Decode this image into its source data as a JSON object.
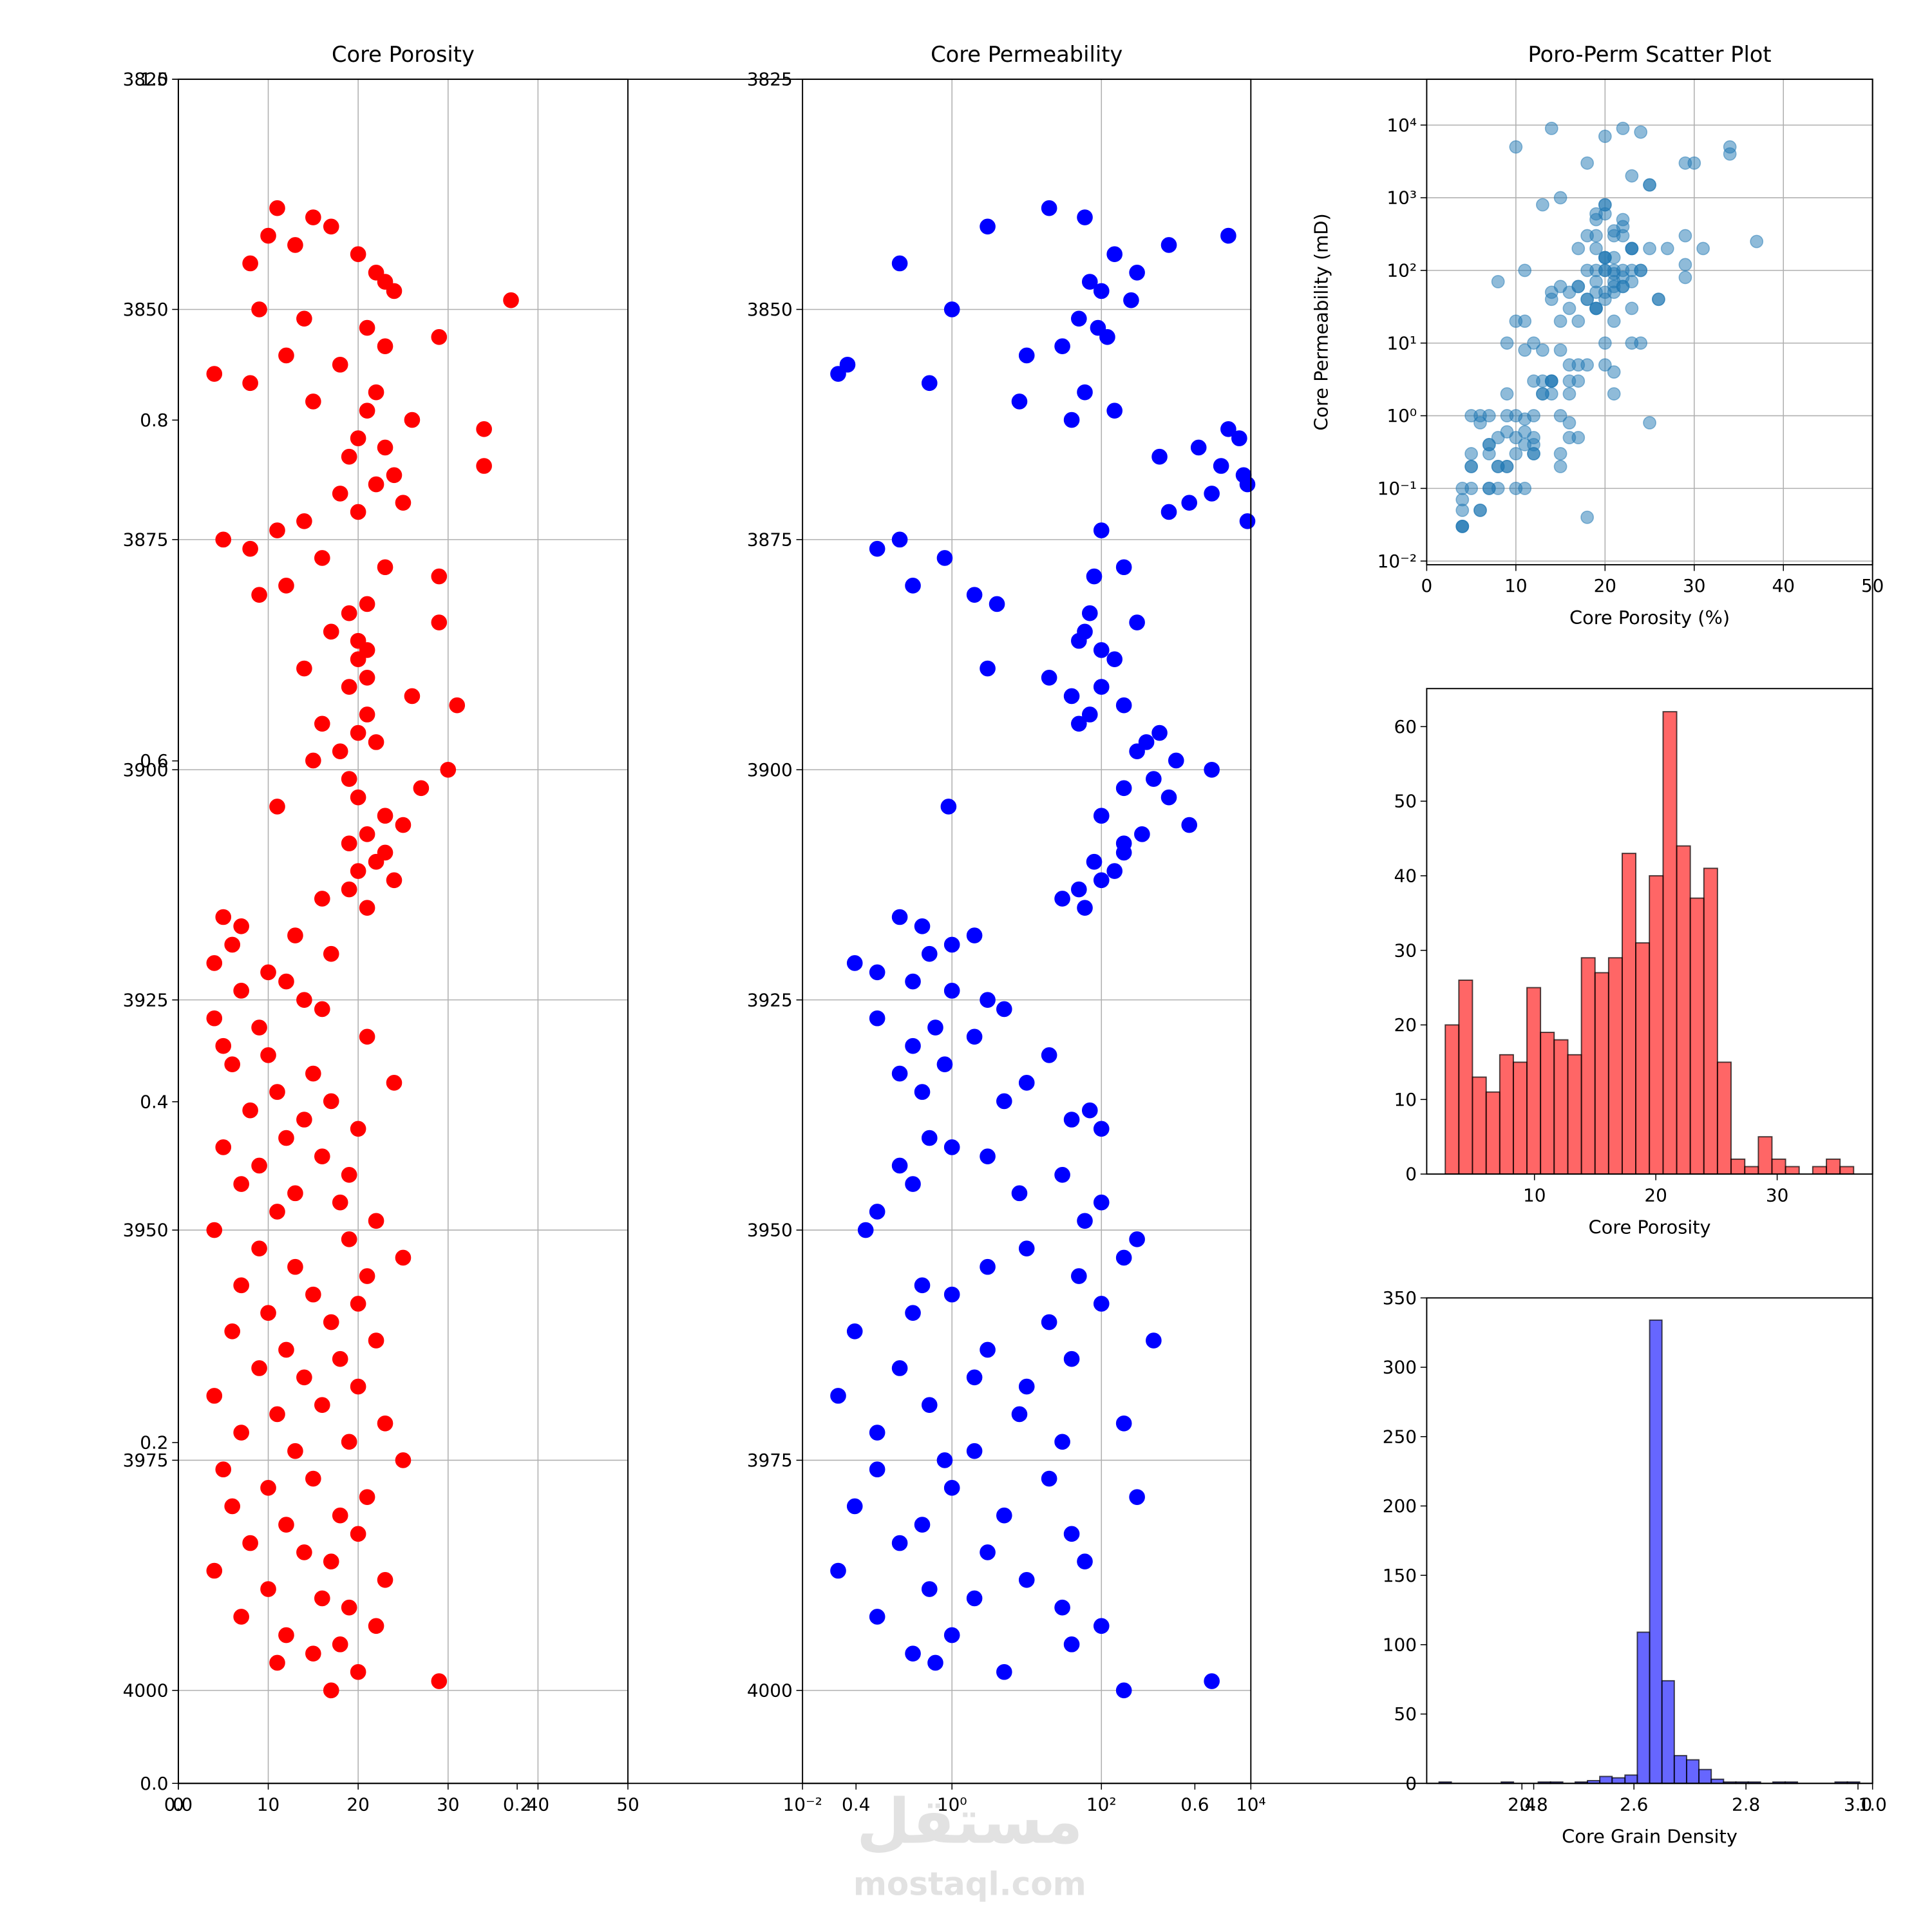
{
  "chart_data": [
    {
      "type": "scatter",
      "title": "Core Porosity",
      "color": "red",
      "grid": true,
      "x": [
        11,
        15,
        17,
        10,
        13,
        20,
        8,
        22,
        23,
        24,
        37,
        9,
        14,
        21,
        29,
        23,
        12,
        18,
        4,
        8,
        22,
        15,
        21,
        26,
        34,
        20,
        23,
        19,
        34,
        24,
        22,
        18,
        25,
        20,
        14,
        11,
        5,
        8,
        16,
        23,
        29,
        12,
        9,
        21,
        19,
        29,
        17,
        20,
        21,
        20,
        14,
        21,
        19,
        26,
        31,
        21,
        16,
        20,
        22,
        18,
        15,
        30,
        19,
        27,
        20,
        11,
        23,
        25,
        21,
        19,
        23,
        22,
        20,
        24,
        19,
        16,
        21,
        5,
        7,
        13,
        6,
        17,
        4,
        10,
        12,
        7,
        14,
        16,
        4,
        9,
        21,
        5,
        10,
        6,
        15,
        24,
        11,
        17,
        8,
        14,
        20,
        12,
        5,
        16,
        9,
        19,
        7,
        13,
        18,
        11,
        22,
        4,
        19,
        9,
        25,
        13,
        21,
        7,
        15,
        20,
        10,
        17,
        6,
        22,
        12,
        18,
        9,
        14,
        20,
        4,
        16,
        11,
        23,
        7,
        19,
        13,
        25,
        5,
        15,
        10,
        21,
        6,
        18,
        12,
        20,
        8,
        14,
        17,
        4,
        23,
        10,
        16,
        19,
        7,
        22,
        12,
        18,
        15,
        11,
        20,
        29,
        17
      ],
      "y": [
        3839,
        3840,
        3841,
        3842,
        3843,
        3844,
        3845,
        3846,
        3847,
        3848,
        3849,
        3850,
        3851,
        3852,
        3853,
        3854,
        3855,
        3856,
        3857,
        3858,
        3859,
        3860,
        3861,
        3862,
        3863,
        3864,
        3865,
        3866,
        3867,
        3868,
        3869,
        3870,
        3871,
        3872,
        3873,
        3874,
        3875,
        3876,
        3877,
        3878,
        3879,
        3880,
        3881,
        3882,
        3883,
        3884,
        3885,
        3886,
        3887,
        3888,
        3889,
        3890,
        3891,
        3892,
        3893,
        3894,
        3895,
        3896,
        3897,
        3898,
        3899,
        3900,
        3901,
        3902,
        3903,
        3904,
        3905,
        3906,
        3907,
        3908,
        3909,
        3910,
        3911,
        3912,
        3913,
        3914,
        3915,
        3916,
        3917,
        3918,
        3919,
        3920,
        3921,
        3922,
        3923,
        3924,
        3925,
        3926,
        3927,
        3928,
        3929,
        3930,
        3931,
        3932,
        3933,
        3934,
        3935,
        3936,
        3937,
        3938,
        3939,
        3940,
        3941,
        3942,
        3943,
        3944,
        3945,
        3946,
        3947,
        3948,
        3949,
        3950,
        3951,
        3952,
        3953,
        3954,
        3955,
        3956,
        3957,
        3958,
        3959,
        3960,
        3961,
        3962,
        3963,
        3964,
        3965,
        3966,
        3967,
        3968,
        3969,
        3970,
        3971,
        3972,
        3973,
        3974,
        3975,
        3976,
        3977,
        3978,
        3979,
        3980,
        3981,
        3982,
        3983,
        3984,
        3985,
        3986,
        3987,
        3988,
        3989,
        3990,
        3991,
        3992,
        3993,
        3994,
        3995,
        3996,
        3997,
        3998,
        3999,
        4000
      ],
      "xlim": [
        0,
        50
      ],
      "xticks": [
        0,
        10,
        20,
        30,
        40,
        50
      ],
      "ylim": [
        4010.1,
        3825
      ],
      "yticks": [
        3825,
        3850,
        3875,
        3900,
        3925,
        3950,
        3975,
        4000
      ]
    },
    {
      "type": "scatter",
      "title": "Core Permeability",
      "color": "blue",
      "grid": true,
      "xscale": "log",
      "x": [
        20,
        60,
        3,
        5000,
        800,
        150,
        0.2,
        300,
        70,
        100,
        250,
        1,
        50,
        90,
        120,
        30,
        10,
        0.04,
        0.03,
        0.5,
        60,
        8,
        150,
        40,
        5000,
        7000,
        2000,
        600,
        4000,
        8000,
        9000,
        3000,
        1500,
        800,
        9000,
        100,
        0.2,
        0.1,
        0.8,
        200,
        80,
        0.3,
        2,
        4,
        70,
        300,
        60,
        50,
        100,
        150,
        3,
        20,
        100,
        40,
        200,
        70,
        50,
        600,
        400,
        300,
        1000,
        3000,
        500,
        200,
        800,
        0.9,
        100,
        1500,
        350,
        200,
        200,
        80,
        150,
        100,
        50,
        30,
        60,
        0.2,
        0.4,
        2,
        1,
        0.5,
        0.05,
        0.1,
        0.3,
        1,
        3,
        5,
        0.1,
        0.6,
        2,
        0.3,
        20,
        0.8,
        0.2,
        10,
        0.4,
        5,
        70,
        40,
        100,
        0.5,
        1,
        3,
        0.2,
        30,
        0.3,
        8,
        100,
        0.1,
        60,
        0.07,
        300,
        10,
        200,
        3,
        50,
        0.4,
        1,
        100,
        0.3,
        20,
        0.05,
        500,
        3,
        40,
        0.2,
        2,
        10,
        0.03,
        0.5,
        8,
        200,
        0.1,
        30,
        2,
        0.8,
        0.1,
        20,
        1,
        300,
        0.05,
        5,
        0.4,
        40,
        0.2,
        3,
        60,
        0.03,
        10,
        0.5,
        2,
        30,
        0.1,
        100,
        1,
        40,
        0.3,
        0.6,
        5,
        3000,
        200
      ],
      "y": [
        3839,
        3840,
        3841,
        3842,
        3843,
        3844,
        3845,
        3846,
        3847,
        3848,
        3849,
        3850,
        3851,
        3852,
        3853,
        3854,
        3855,
        3856,
        3857,
        3858,
        3859,
        3860,
        3861,
        3862,
        3863,
        3864,
        3865,
        3866,
        3867,
        3868,
        3869,
        3870,
        3871,
        3872,
        3873,
        3874,
        3875,
        3876,
        3877,
        3878,
        3879,
        3880,
        3881,
        3882,
        3883,
        3884,
        3885,
        3886,
        3887,
        3888,
        3889,
        3890,
        3891,
        3892,
        3893,
        3894,
        3895,
        3896,
        3897,
        3898,
        3899,
        3900,
        3901,
        3902,
        3903,
        3904,
        3905,
        3906,
        3907,
        3908,
        3909,
        3910,
        3911,
        3912,
        3913,
        3914,
        3915,
        3916,
        3917,
        3918,
        3919,
        3920,
        3921,
        3922,
        3923,
        3924,
        3925,
        3926,
        3927,
        3928,
        3929,
        3930,
        3931,
        3932,
        3933,
        3934,
        3935,
        3936,
        3937,
        3938,
        3939,
        3940,
        3941,
        3942,
        3943,
        3944,
        3945,
        3946,
        3947,
        3948,
        3949,
        3950,
        3951,
        3952,
        3953,
        3954,
        3955,
        3956,
        3957,
        3958,
        3959,
        3960,
        3961,
        3962,
        3963,
        3964,
        3965,
        3966,
        3967,
        3968,
        3969,
        3970,
        3971,
        3972,
        3973,
        3974,
        3975,
        3976,
        3977,
        3978,
        3979,
        3980,
        3981,
        3982,
        3983,
        3984,
        3985,
        3986,
        3987,
        3988,
        3989,
        3990,
        3991,
        3992,
        3993,
        3994,
        3995,
        3996,
        3997,
        3998,
        3999,
        4000
      ],
      "xlim": [
        0.01,
        10000
      ],
      "xticks": [
        {
          "value": 0.01,
          "label": "10⁻²"
        },
        {
          "value": 1,
          "label": "10⁰"
        },
        {
          "value": 100,
          "label": "10²"
        },
        {
          "value": 10000,
          "label": "10⁴"
        }
      ],
      "ylim": [
        4010.1,
        3825
      ],
      "yticks": [
        3825,
        3850,
        3875,
        3900,
        3925,
        3950,
        3975,
        4000
      ]
    },
    {
      "type": "scatter",
      "title": "Poro-Perm Scatter Plot",
      "xlabel": "Core Porosity (%)",
      "ylabel": "Core Permeability (mD)",
      "color": "#1f77b4",
      "alpha": 0.5,
      "grid": true,
      "yscale": "log",
      "x": [
        11,
        15,
        17,
        10,
        13,
        20,
        8,
        22,
        23,
        24,
        37,
        9,
        14,
        21,
        29,
        23,
        12,
        18,
        4,
        8,
        22,
        15,
        21,
        26,
        34,
        20,
        23,
        19,
        34,
        24,
        22,
        18,
        25,
        20,
        14,
        11,
        5,
        8,
        16,
        23,
        29,
        12,
        9,
        21,
        19,
        29,
        17,
        20,
        21,
        20,
        14,
        21,
        19,
        26,
        31,
        21,
        16,
        20,
        22,
        18,
        15,
        30,
        19,
        27,
        20,
        11,
        23,
        25,
        21,
        19,
        23,
        22,
        20,
        24,
        19,
        16,
        21,
        5,
        7,
        13,
        6,
        17,
        4,
        10,
        12,
        7,
        14,
        16,
        4,
        9,
        21,
        5,
        10,
        6,
        15,
        24,
        11,
        17,
        8,
        14,
        20,
        12,
        5,
        16,
        9,
        19,
        7,
        13,
        18,
        11,
        22,
        4,
        19,
        9,
        25,
        13,
        21,
        7,
        15,
        20,
        10,
        17,
        6,
        22,
        12,
        18,
        9,
        14,
        20,
        4,
        16,
        11,
        23,
        7,
        19,
        13,
        25,
        5,
        15,
        10,
        21,
        6,
        18,
        12,
        20,
        8,
        14,
        17,
        4,
        23,
        10,
        16,
        19,
        7,
        22,
        12,
        18,
        15,
        11,
        20,
        29,
        17
      ],
      "y": [
        20,
        60,
        3,
        5000,
        800,
        150,
        0.2,
        300,
        70,
        100,
        250,
        1,
        50,
        90,
        120,
        30,
        10,
        0.04,
        0.03,
        0.5,
        60,
        8,
        150,
        40,
        5000,
        7000,
        2000,
        600,
        4000,
        8000,
        9000,
        3000,
        1500,
        800,
        9000,
        100,
        0.2,
        0.1,
        0.8,
        200,
        80,
        0.3,
        2,
        4,
        70,
        300,
        60,
        50,
        100,
        150,
        3,
        20,
        100,
        40,
        200,
        70,
        50,
        600,
        400,
        300,
        1000,
        3000,
        500,
        200,
        800,
        0.9,
        100,
        1500,
        350,
        200,
        200,
        80,
        150,
        100,
        50,
        30,
        60,
        0.2,
        0.4,
        2,
        1,
        0.5,
        0.05,
        0.1,
        0.3,
        1,
        3,
        5,
        0.1,
        0.6,
        2,
        0.3,
        20,
        0.8,
        0.2,
        10,
        0.4,
        5,
        70,
        40,
        100,
        0.5,
        1,
        3,
        0.2,
        30,
        0.3,
        8,
        100,
        0.1,
        60,
        0.07,
        300,
        10,
        200,
        3,
        50,
        0.4,
        1,
        100,
        0.3,
        20,
        0.05,
        500,
        3,
        40,
        0.2,
        2,
        10,
        0.03,
        0.5,
        8,
        200,
        0.1,
        30,
        2,
        0.8,
        0.1,
        20,
        1,
        300,
        0.05,
        5,
        0.4,
        40,
        0.2,
        3,
        60,
        0.03,
        10,
        0.5,
        2,
        30,
        0.1,
        100,
        1,
        40,
        0.3,
        0.6,
        5,
        3000,
        200
      ],
      "xlim": [
        0,
        50
      ],
      "xticks": [
        0,
        10,
        20,
        30,
        40,
        50
      ],
      "ylim": [
        0.0089,
        42700
      ],
      "yticks": [
        {
          "value": 0.01,
          "label": "10⁻²"
        },
        {
          "value": 0.1,
          "label": "10⁻¹"
        },
        {
          "value": 1,
          "label": "10⁰"
        },
        {
          "value": 10,
          "label": "10¹"
        },
        {
          "value": 100,
          "label": "10²"
        },
        {
          "value": 1000,
          "label": "10³"
        },
        {
          "value": 10000,
          "label": "10⁴"
        }
      ]
    },
    {
      "type": "histogram",
      "xlabel": "Core Porosity",
      "color": "red",
      "alpha": 0.6,
      "edgecolor": "black",
      "grid": false,
      "bins": [
        2.65,
        3.77,
        4.89,
        6.02,
        7.14,
        8.26,
        9.38,
        10.5,
        11.62,
        12.75,
        13.87,
        14.99,
        16.11,
        17.23,
        18.35,
        19.47,
        20.6,
        21.72,
        22.84,
        23.96,
        25.08,
        26.2,
        27.33,
        28.45,
        29.57,
        30.69,
        31.81,
        32.93,
        34.06,
        35.18,
        36.3
      ],
      "counts": [
        20,
        26,
        13,
        11,
        16,
        15,
        25,
        19,
        18,
        16,
        29,
        27,
        29,
        43,
        31,
        40,
        62,
        44,
        37,
        41,
        15,
        2,
        1,
        5,
        2,
        1,
        0,
        1,
        2,
        1
      ],
      "xlim": [
        1.12,
        37.86
      ],
      "xticks": [
        10,
        20,
        30
      ],
      "ylim": [
        0,
        65.1
      ],
      "yticks": [
        0,
        10,
        20,
        30,
        40,
        50,
        60
      ]
    },
    {
      "type": "histogram",
      "xlabel": "Core Grain Density",
      "color": "blue",
      "alpha": 0.6,
      "edgecolor": "black",
      "grid": false,
      "bins": [
        2.252,
        2.274,
        2.296,
        2.318,
        2.34,
        2.363,
        2.385,
        2.407,
        2.429,
        2.451,
        2.473,
        2.495,
        2.517,
        2.539,
        2.561,
        2.584,
        2.606,
        2.628,
        2.65,
        2.672,
        2.694,
        2.716,
        2.738,
        2.76,
        2.782,
        2.804,
        2.826,
        2.848,
        2.87,
        2.892,
        2.915,
        2.937,
        2.959,
        2.981,
        3.003,
        3.025
      ],
      "counts": [
        1,
        0,
        0,
        0,
        0,
        1,
        0,
        0,
        1,
        1,
        0,
        1,
        2,
        5,
        4,
        6,
        109,
        334,
        74,
        20,
        17,
        10,
        3,
        1,
        1,
        1,
        0,
        1,
        1,
        0,
        0,
        0,
        1,
        1,
        0
      ],
      "xlim": [
        2.23,
        3.026
      ],
      "xticks": [
        2.4,
        2.6,
        2.8,
        {
          "value": 3,
          "label": "3.0"
        }
      ],
      "ylim": [
        0,
        350
      ],
      "yticks": [
        0,
        50,
        100,
        150,
        200,
        250,
        300,
        350
      ]
    },
    {
      "type": "axes",
      "grid": false,
      "xlim": [
        0,
        1
      ],
      "ylim": [
        0,
        1
      ],
      "xticks": [
        {
          "value": 0,
          "label": "0.0"
        },
        0.2,
        0.4,
        0.6,
        0.8,
        {
          "value": 1,
          "label": "1.0"
        }
      ],
      "yticks": [
        {
          "value": 0,
          "label": "0.0"
        },
        0.2,
        0.4,
        0.6,
        0.8,
        {
          "value": 1,
          "label": "1.0"
        }
      ]
    }
  ],
  "watermark": {
    "arabic": "مستقل",
    "latin": "mostaql.com"
  }
}
